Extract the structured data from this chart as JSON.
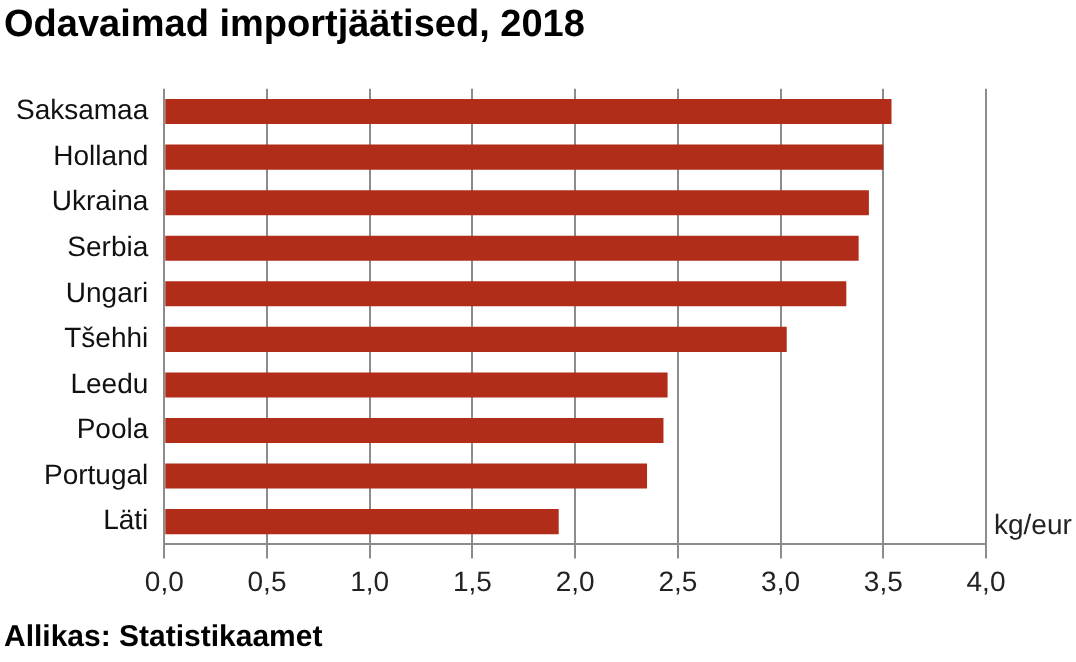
{
  "chart_data": {
    "type": "bar",
    "orientation": "horizontal",
    "title": "Odavaimad importjäätised, 2018",
    "xlabel": "kg/eur",
    "categories": [
      "Saksamaa",
      "Holland",
      "Ukraina",
      "Serbia",
      "Ungari",
      "Tšehhi",
      "Leedu",
      "Poola",
      "Portugal",
      "Läti"
    ],
    "values": [
      3.54,
      3.5,
      3.43,
      3.38,
      3.32,
      3.03,
      2.45,
      2.43,
      2.35,
      1.92
    ],
    "color": "#b22c1a",
    "xlim": [
      0,
      4
    ],
    "xticks": [
      {
        "value": 0,
        "label": "0,0"
      },
      {
        "value": 0.5,
        "label": "0,5"
      },
      {
        "value": 1,
        "label": "1,0"
      },
      {
        "value": 1.5,
        "label": "1,5"
      },
      {
        "value": 2,
        "label": "2,0"
      },
      {
        "value": 2.5,
        "label": "2,5"
      },
      {
        "value": 3,
        "label": "3,0"
      },
      {
        "value": 3.5,
        "label": "3,5"
      },
      {
        "value": 4,
        "label": "4,0"
      }
    ],
    "grid": "x",
    "legend": false,
    "annotations": [
      "Allikas: Statistikaamet"
    ]
  }
}
